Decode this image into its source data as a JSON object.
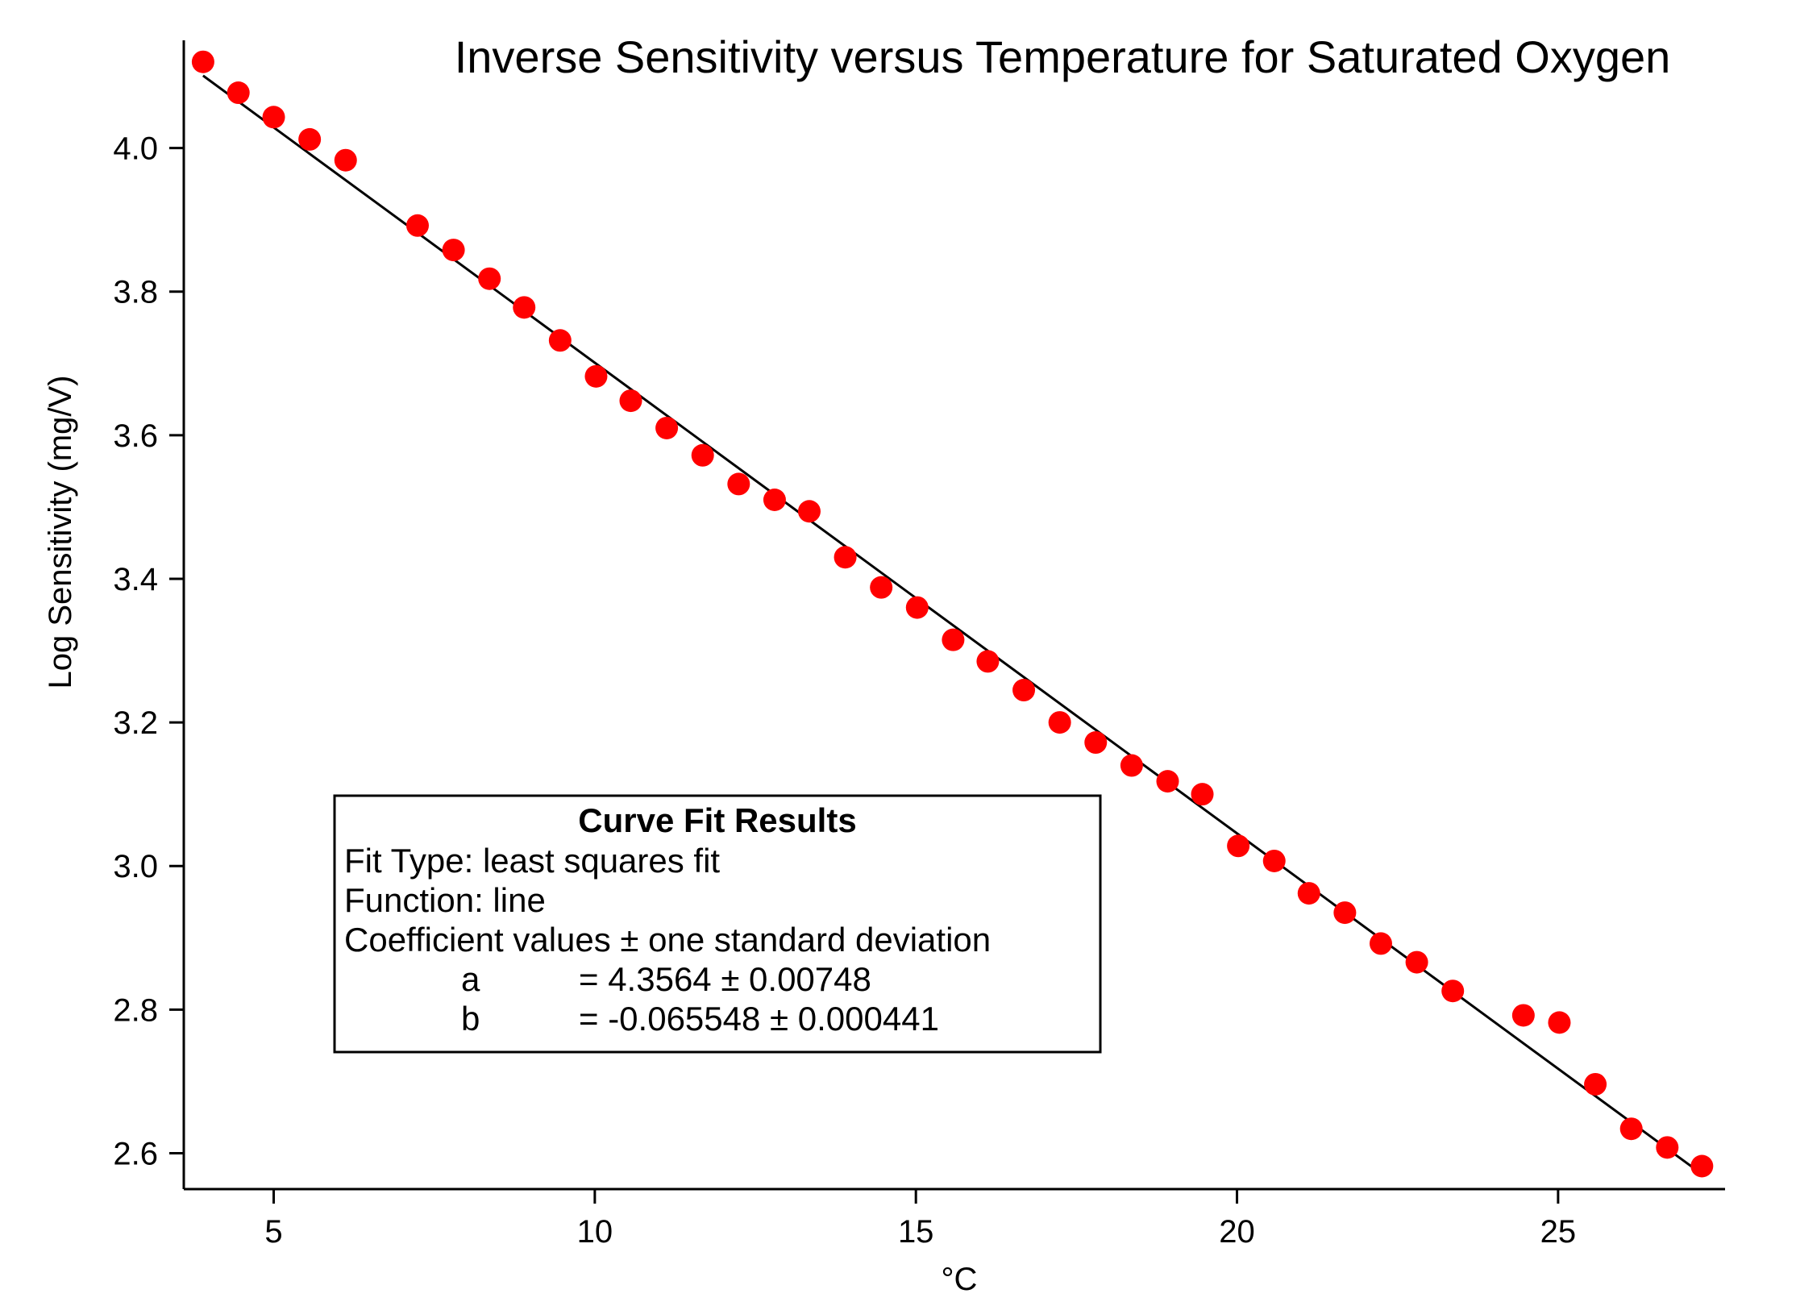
{
  "chart_data": {
    "type": "scatter",
    "title": "Inverse Sensitivity versus Temperature for Saturated Oxygen",
    "xlabel": "°C",
    "ylabel": "Log Sensitivity (mg/V)",
    "xlim": [
      3.6,
      27.6
    ],
    "ylim": [
      2.55,
      4.15
    ],
    "x_ticks": [
      5,
      10,
      15,
      20,
      25
    ],
    "x_tick_labels": [
      "5",
      "10",
      "15",
      "20",
      "25"
    ],
    "y_ticks": [
      2.6,
      2.8,
      3.0,
      3.2,
      3.4,
      3.6,
      3.8,
      4.0
    ],
    "y_tick_labels": [
      "2.6",
      "2.8",
      "3.0",
      "3.2",
      "3.4",
      "3.6",
      "3.8",
      "4.0"
    ],
    "grid": false,
    "marker_color": "#ff0000",
    "fit_line_color": "#000000",
    "series": [
      {
        "points": [
          [
            3.9,
            4.12
          ],
          [
            4.45,
            4.077
          ],
          [
            5.0,
            4.043
          ],
          [
            5.56,
            4.012
          ],
          [
            6.12,
            3.983
          ],
          [
            7.24,
            3.892
          ],
          [
            7.8,
            3.858
          ],
          [
            8.36,
            3.818
          ],
          [
            8.9,
            3.778
          ],
          [
            9.46,
            3.732
          ],
          [
            10.02,
            3.682
          ],
          [
            10.56,
            3.648
          ],
          [
            11.12,
            3.61
          ],
          [
            11.68,
            3.572
          ],
          [
            12.24,
            3.532
          ],
          [
            12.8,
            3.51
          ],
          [
            13.34,
            3.494
          ],
          [
            13.9,
            3.43
          ],
          [
            14.46,
            3.388
          ],
          [
            15.02,
            3.36
          ],
          [
            15.58,
            3.315
          ],
          [
            16.12,
            3.285
          ],
          [
            16.68,
            3.245
          ],
          [
            17.24,
            3.2
          ],
          [
            17.8,
            3.172
          ],
          [
            18.36,
            3.14
          ],
          [
            18.92,
            3.118
          ],
          [
            19.46,
            3.1
          ],
          [
            20.02,
            3.028
          ],
          [
            20.58,
            3.007
          ],
          [
            21.12,
            2.962
          ],
          [
            21.68,
            2.935
          ],
          [
            22.24,
            2.892
          ],
          [
            22.8,
            2.866
          ],
          [
            23.36,
            2.826
          ],
          [
            24.46,
            2.792
          ],
          [
            25.02,
            2.782
          ],
          [
            25.58,
            2.696
          ],
          [
            26.14,
            2.634
          ],
          [
            26.7,
            2.608
          ],
          [
            27.24,
            2.582
          ]
        ]
      }
    ],
    "fit": {
      "type": "line",
      "a": 4.3564,
      "b": -0.065548,
      "x_range": [
        3.9,
        27.24
      ]
    },
    "annotation": {
      "title": "Curve Fit Results",
      "lines": [
        "Fit Type: least squares fit",
        "Function: line",
        "Coefficient values ± one standard deviation"
      ],
      "coefficients": [
        {
          "name": "a",
          "value": "= 4.3564 ± 0.00748"
        },
        {
          "name": "b",
          "value": "= -0.065548 ± 0.000441"
        }
      ]
    }
  }
}
